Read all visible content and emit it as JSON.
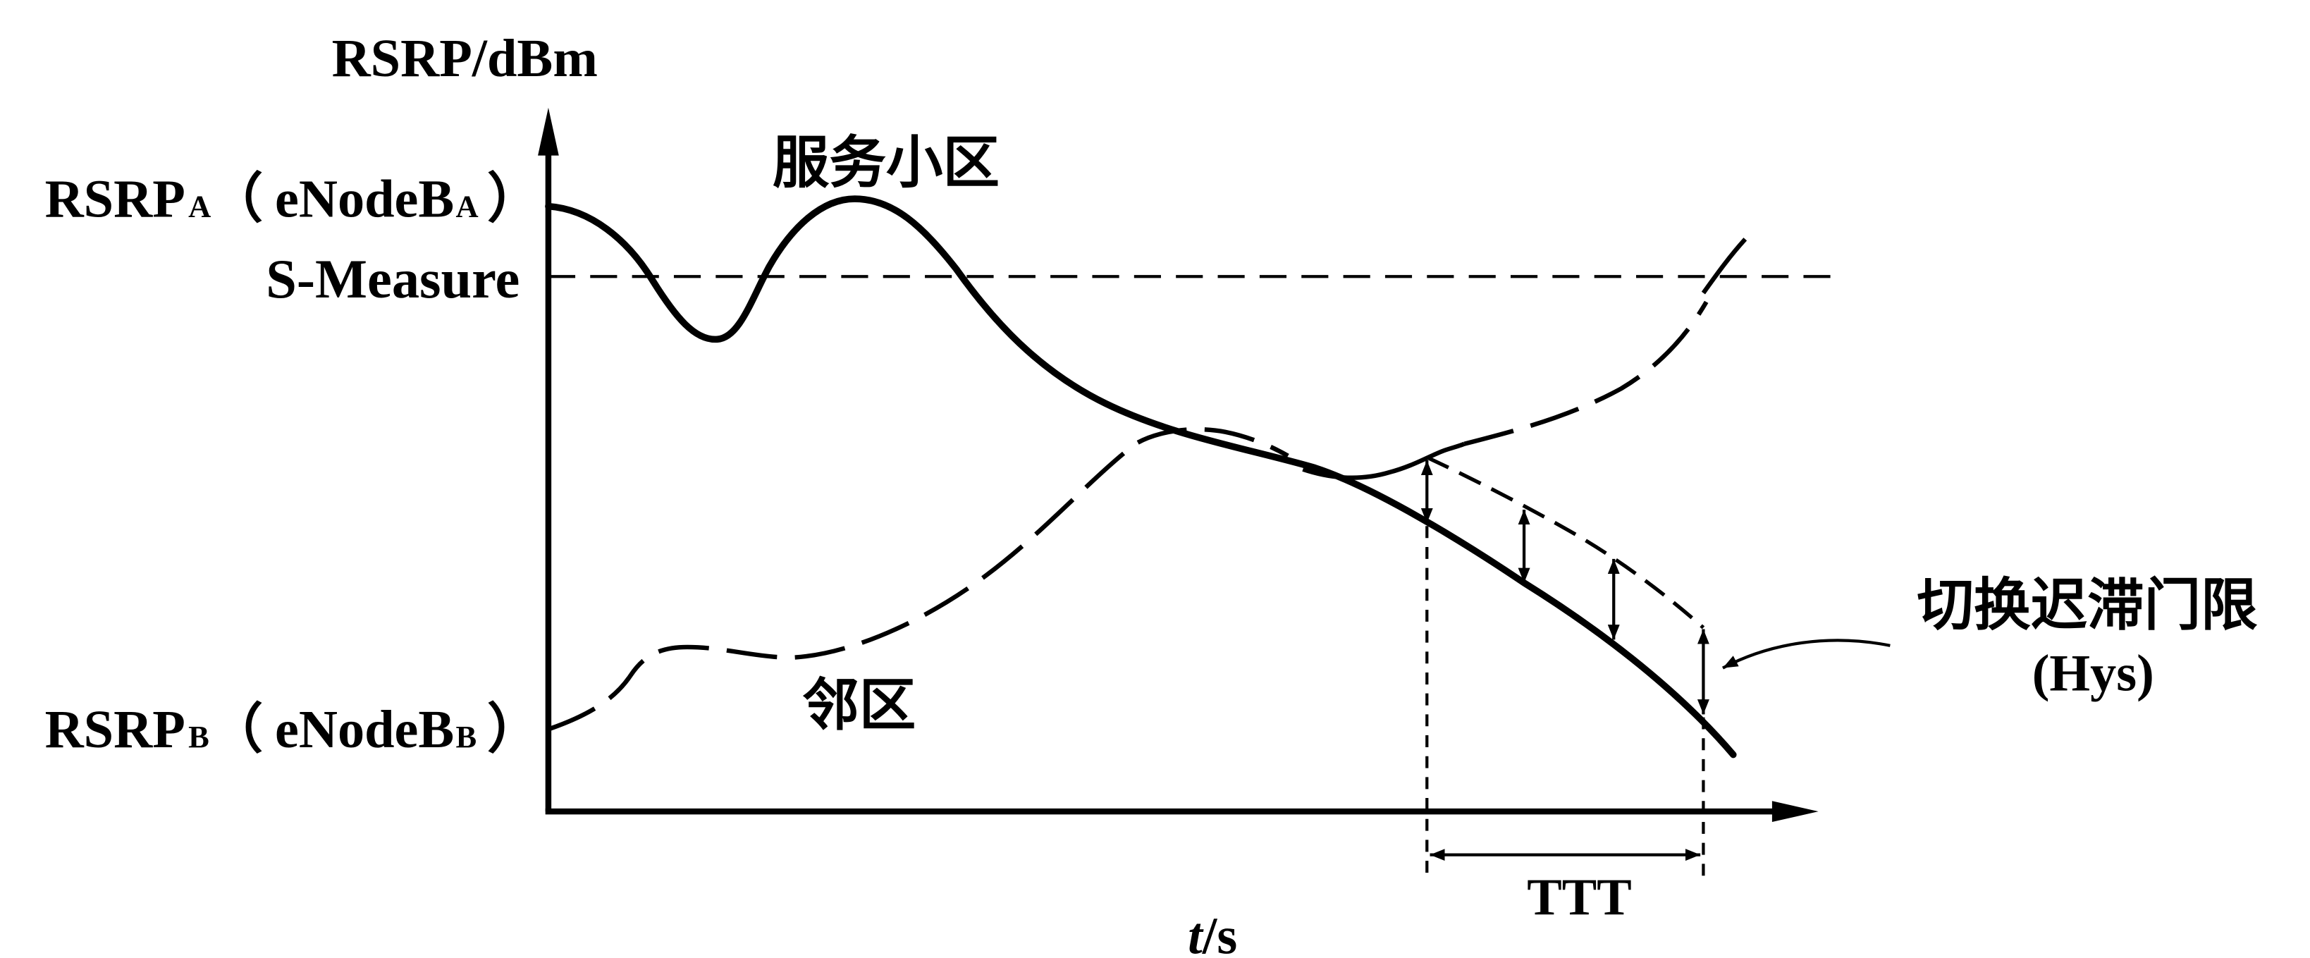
{
  "axes": {
    "y_label": "RSRP/dBm",
    "x_label_var": "t",
    "x_label_unit": "/s"
  },
  "levels": {
    "rsrp_a": {
      "name": "RSRP",
      "sub": "A",
      "open": "（",
      "node": "eNodeB",
      "node_sub": "A",
      "close": "）"
    },
    "s_measure": "S-Measure",
    "rsrp_b": {
      "name": "RSRP",
      "sub": "B",
      "open": "（",
      "node": "eNodeB",
      "node_sub": "B",
      "close": "）"
    }
  },
  "curves": {
    "serving": "服务小区",
    "neighbor": "邻区"
  },
  "hysteresis": {
    "label": "切换迟滞门限",
    "abbr": "(Hys)"
  },
  "ttt_label": "TTT",
  "colors": {
    "ink": "#000000",
    "background": "#ffffff"
  }
}
